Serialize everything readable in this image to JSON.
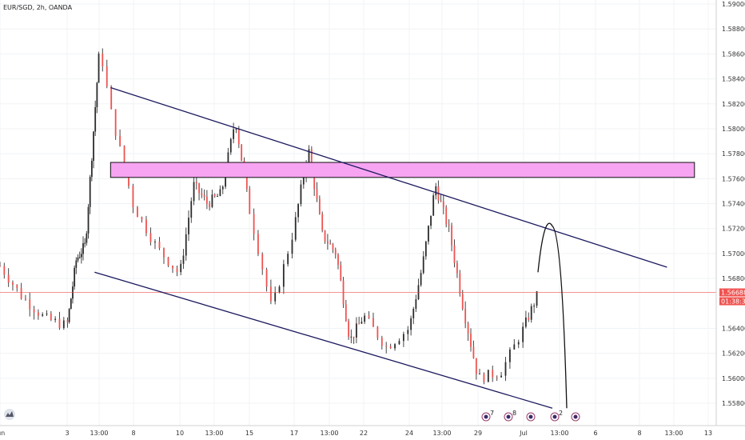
{
  "header": {
    "symbol": "EUR/SGD, 2h, OANDA"
  },
  "price_axis": {
    "labels": [
      "1.59000",
      "1.58800",
      "1.58600",
      "1.58400",
      "1.58200",
      "1.58000",
      "1.57800",
      "1.57600",
      "1.57400",
      "1.57200",
      "1.57000",
      "1.56800",
      "1.56400",
      "1.56200",
      "1.56000",
      "1.55800"
    ],
    "current_price": "1.56688",
    "countdown": "01:38:33"
  },
  "time_axis": {
    "labels": [
      "Jun",
      "3",
      "13:00",
      "8",
      "10",
      "13:00",
      "15",
      "17",
      "13:00",
      "22",
      "24",
      "13:00",
      "29",
      "Jul",
      "13:00",
      "6",
      "8",
      "13:00",
      "13"
    ]
  },
  "events": [
    "7",
    "8",
    "3",
    "2"
  ],
  "colors": {
    "up": "#26a69a",
    "down": "#ef5350",
    "candle": "#444444",
    "zone_fill": "#f7a4f2",
    "zone_border": "#111111",
    "trendline": "#1c1a5e",
    "current_price_line": "#ef5350",
    "price_tag": "#ef5350",
    "countdown_tag": "#ef5350"
  },
  "chart_data": {
    "type": "candlestick",
    "title": "EUR/SGD, 2h, OANDA",
    "ylim": [
      1.5575,
      1.5905
    ],
    "x_range": [
      "May 31",
      "Jul 13"
    ],
    "y_ticks": [
      1.59,
      1.588,
      1.586,
      1.584,
      1.582,
      1.58,
      1.578,
      1.576,
      1.574,
      1.572,
      1.57,
      1.568,
      1.564,
      1.562,
      1.56,
      1.558
    ],
    "current_price": 1.56688,
    "close_path_keyframes": [
      {
        "t": "May 31",
        "close": 1.569
      },
      {
        "t": "Jun 1",
        "close": 1.5665
      },
      {
        "t": "Jun 2",
        "close": 1.5648
      },
      {
        "t": "Jun 3",
        "close": 1.5642
      },
      {
        "t": "Jun 4",
        "close": 1.5695
      },
      {
        "t": "Jun 5",
        "close": 1.5707
      },
      {
        "t": "Jun 6 13:00",
        "close": 1.5865
      },
      {
        "t": "Jun 7",
        "close": 1.5815
      },
      {
        "t": "Jun 8",
        "close": 1.5738
      },
      {
        "t": "Jun 9",
        "close": 1.5705
      },
      {
        "t": "Jun 10",
        "close": 1.5683
      },
      {
        "t": "Jun 11",
        "close": 1.5755
      },
      {
        "t": "Jun 12",
        "close": 1.574
      },
      {
        "t": "Jun 13",
        "close": 1.5748
      },
      {
        "t": "Jun 14",
        "close": 1.5808
      },
      {
        "t": "Jun 15",
        "close": 1.5735
      },
      {
        "t": "Jun 16",
        "close": 1.5655
      },
      {
        "t": "Jun 17",
        "close": 1.572
      },
      {
        "t": "Jun 18",
        "close": 1.5785
      },
      {
        "t": "Jun 19",
        "close": 1.5715
      },
      {
        "t": "Jun 20",
        "close": 1.57
      },
      {
        "t": "Jun 21",
        "close": 1.563
      },
      {
        "t": "Jun 22",
        "close": 1.565
      },
      {
        "t": "Jun 23",
        "close": 1.5625
      },
      {
        "t": "Jun 24",
        "close": 1.564
      },
      {
        "t": "Jun 25",
        "close": 1.569
      },
      {
        "t": "Jun 26",
        "close": 1.5755
      },
      {
        "t": "Jun 27",
        "close": 1.5718
      },
      {
        "t": "Jun 28",
        "close": 1.5655
      },
      {
        "t": "Jun 29",
        "close": 1.56
      },
      {
        "t": "Jun 30",
        "close": 1.5605
      },
      {
        "t": "Jul 1",
        "close": 1.564
      },
      {
        "t": "Jul 2",
        "close": 1.5668
      }
    ],
    "drawings": {
      "resistance_zone": {
        "from": "Jun 7",
        "to": "Jul 12",
        "top": 1.5773,
        "bottom": 1.5761
      },
      "upper_trendline": [
        {
          "t": "Jun 7",
          "price": 1.5833
        },
        {
          "t": "Jul 10",
          "price": 1.5689
        }
      ],
      "lower_trendline": [
        {
          "t": "Jun 6",
          "price": 1.5685
        },
        {
          "t": "Jul 3",
          "price": 1.5576
        }
      ],
      "projection": [
        {
          "t": "Jul 2",
          "price": 1.5685
        },
        {
          "t": "Jul 3",
          "price": 1.5722
        },
        {
          "t": "Jul 4",
          "price": 1.5576
        }
      ]
    }
  }
}
